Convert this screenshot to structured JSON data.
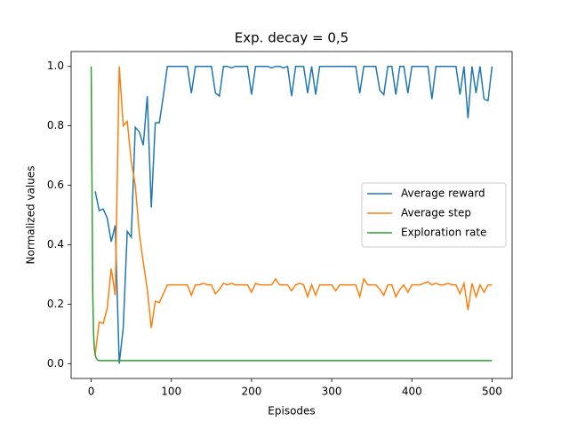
{
  "chart_data": {
    "type": "line",
    "title": "Exp. decay = 0,5",
    "xlabel": "Episodes",
    "ylabel": "Normalized values",
    "xlim": [
      -25,
      525
    ],
    "ylim": [
      -0.05,
      1.05
    ],
    "xticks": [
      0,
      100,
      200,
      300,
      400,
      500
    ],
    "yticks": [
      {
        "value": 0,
        "label": "0.0"
      },
      0.2,
      0.4,
      0.6,
      0.8,
      {
        "value": 1,
        "label": "1.0"
      }
    ],
    "grid": false,
    "legend": "center right",
    "series": [
      {
        "name": "Average reward",
        "color": "#1f77b4",
        "x": [
          5,
          10,
          15,
          20,
          25,
          30,
          35,
          40,
          45,
          50,
          55,
          60,
          65,
          70,
          75,
          80,
          85,
          90,
          95,
          100,
          105,
          110,
          115,
          120,
          125,
          130,
          135,
          140,
          145,
          150,
          155,
          160,
          165,
          170,
          175,
          180,
          185,
          190,
          195,
          200,
          205,
          210,
          215,
          220,
          225,
          230,
          235,
          240,
          245,
          250,
          255,
          260,
          265,
          270,
          275,
          280,
          285,
          290,
          295,
          300,
          305,
          310,
          315,
          320,
          325,
          330,
          335,
          340,
          345,
          350,
          355,
          360,
          365,
          370,
          375,
          380,
          385,
          390,
          395,
          400,
          405,
          410,
          415,
          420,
          425,
          430,
          435,
          440,
          445,
          450,
          455,
          460,
          465,
          470,
          475,
          480,
          485,
          490,
          495,
          500
        ],
        "values": [
          0.58,
          0.515,
          0.52,
          0.49,
          0.41,
          0.465,
          0.0,
          0.12,
          0.445,
          0.425,
          0.795,
          0.78,
          0.735,
          0.9,
          0.525,
          0.81,
          0.81,
          0.9,
          1,
          1,
          1,
          1,
          1,
          1,
          0.91,
          1,
          1,
          1,
          1,
          1,
          0.91,
          0.9,
          1,
          1,
          0.995,
          1,
          1,
          1,
          1,
          0.905,
          1,
          1,
          1,
          1,
          0.995,
          1,
          1,
          0.995,
          1,
          0.9,
          1,
          1,
          1,
          0.91,
          1,
          0.905,
          1,
          1,
          1,
          1,
          1,
          1,
          1,
          1,
          1,
          1,
          0.91,
          1,
          1,
          1,
          1,
          0.92,
          0.905,
          1,
          1,
          0.905,
          1,
          1,
          0.91,
          1,
          1,
          1,
          1,
          1,
          0.89,
          1,
          1,
          1,
          1,
          1,
          1,
          0.905,
          1,
          0.825,
          1,
          0.91,
          1,
          0.89,
          0.885,
          1
        ]
      },
      {
        "name": "Average step",
        "color": "#ff7f0e",
        "x": [
          5,
          10,
          15,
          20,
          25,
          30,
          35,
          40,
          45,
          50,
          55,
          60,
          65,
          70,
          75,
          80,
          85,
          90,
          95,
          100,
          105,
          110,
          115,
          120,
          125,
          130,
          135,
          140,
          145,
          150,
          155,
          160,
          165,
          170,
          175,
          180,
          185,
          190,
          195,
          200,
          205,
          210,
          215,
          220,
          225,
          230,
          235,
          240,
          245,
          250,
          255,
          260,
          265,
          270,
          275,
          280,
          285,
          290,
          295,
          300,
          305,
          310,
          315,
          320,
          325,
          330,
          335,
          340,
          345,
          350,
          355,
          360,
          365,
          370,
          375,
          380,
          385,
          390,
          395,
          400,
          405,
          410,
          415,
          420,
          425,
          430,
          435,
          440,
          445,
          450,
          455,
          460,
          465,
          470,
          475,
          480,
          485,
          490,
          495,
          500
        ],
        "values": [
          0.03,
          0.14,
          0.135,
          0.185,
          0.32,
          0.23,
          1.0,
          0.8,
          0.815,
          0.68,
          0.6,
          0.44,
          0.34,
          0.25,
          0.12,
          0.21,
          0.205,
          0.235,
          0.265,
          0.265,
          0.265,
          0.265,
          0.265,
          0.265,
          0.23,
          0.265,
          0.265,
          0.27,
          0.265,
          0.265,
          0.235,
          0.25,
          0.27,
          0.265,
          0.27,
          0.265,
          0.265,
          0.265,
          0.265,
          0.24,
          0.27,
          0.265,
          0.265,
          0.265,
          0.265,
          0.285,
          0.265,
          0.265,
          0.265,
          0.245,
          0.265,
          0.27,
          0.265,
          0.225,
          0.265,
          0.23,
          0.265,
          0.265,
          0.265,
          0.265,
          0.245,
          0.265,
          0.265,
          0.265,
          0.265,
          0.265,
          0.225,
          0.285,
          0.265,
          0.265,
          0.265,
          0.25,
          0.23,
          0.265,
          0.265,
          0.225,
          0.25,
          0.265,
          0.24,
          0.265,
          0.265,
          0.265,
          0.27,
          0.275,
          0.265,
          0.27,
          0.265,
          0.265,
          0.27,
          0.265,
          0.265,
          0.235,
          0.27,
          0.18,
          0.27,
          0.225,
          0.265,
          0.24,
          0.265,
          0.265
        ]
      },
      {
        "name": "Exploration rate",
        "color": "#2ca02c",
        "x": [
          0,
          1,
          2,
          3,
          4,
          5,
          6,
          8,
          10,
          500
        ],
        "values": [
          1.0,
          0.61,
          0.23,
          0.1,
          0.05,
          0.03,
          0.02,
          0.012,
          0.01,
          0.01
        ]
      }
    ]
  }
}
